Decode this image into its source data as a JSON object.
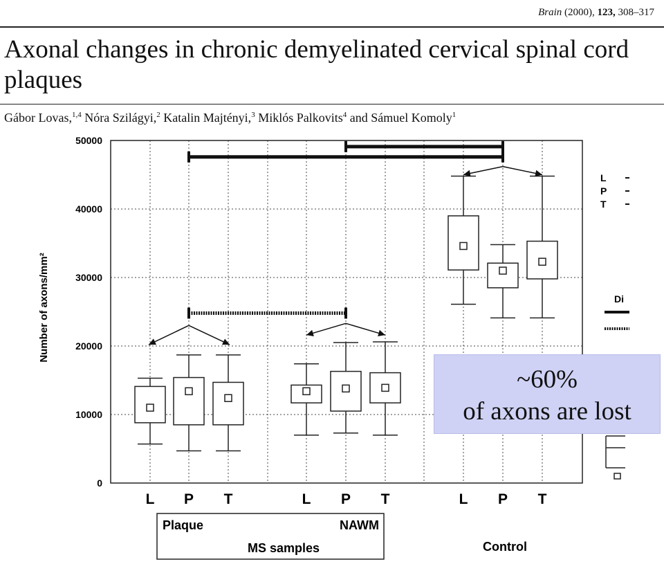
{
  "citation": {
    "journal": "Brain",
    "year": "(2000),",
    "volume": "123,",
    "pages": "308–317"
  },
  "title": "Axonal changes in chronic demyelinated cervical spinal cord plaques",
  "authors": [
    {
      "name": "Gábor Lovas,",
      "sup": "1,4"
    },
    {
      "name": "Nóra Szilágyi,",
      "sup": "2"
    },
    {
      "name": "Katalin Majtényi,",
      "sup": "3"
    },
    {
      "name": "Miklós Palkovits",
      "sup": "4"
    },
    {
      "name": "and Sámuel Komoly",
      "sup": "1"
    }
  ],
  "overlay": {
    "line1": "~60%",
    "line2": "of axons are lost"
  },
  "chart_data": {
    "type": "box",
    "ylabel": "Number of axons/mm²",
    "ylim": [
      0,
      50000
    ],
    "yticks": [
      0,
      10000,
      20000,
      30000,
      40000,
      50000
    ],
    "grid": true,
    "categories": [
      "L",
      "P",
      "T",
      "L",
      "P",
      "T",
      "L",
      "P",
      "T"
    ],
    "groups": [
      {
        "label": "Plaque",
        "indices": [
          0,
          1,
          2
        ]
      },
      {
        "label": "NAWM",
        "indices": [
          3,
          4,
          5
        ]
      },
      {
        "label": "Control",
        "indices": [
          6,
          7,
          8
        ]
      }
    ],
    "group_caption": "MS samples",
    "boxes": [
      {
        "min": 5700,
        "q1": 8800,
        "median": 11000,
        "q3": 14100,
        "max": 15300
      },
      {
        "min": 4700,
        "q1": 8500,
        "median": 13400,
        "q3": 15400,
        "max": 18700
      },
      {
        "min": 4700,
        "q1": 8500,
        "median": 12400,
        "q3": 14700,
        "max": 18700
      },
      {
        "min": 7000,
        "q1": 11700,
        "median": 13400,
        "q3": 14300,
        "max": 17400
      },
      {
        "min": 7300,
        "q1": 10500,
        "median": 13800,
        "q3": 16300,
        "max": 20500
      },
      {
        "min": 7000,
        "q1": 11700,
        "median": 13900,
        "q3": 16100,
        "max": 20600
      },
      {
        "min": 26100,
        "q1": 31100,
        "median": 34600,
        "q3": 39000,
        "max": 44800
      },
      {
        "min": 24100,
        "q1": 28500,
        "median": 31000,
        "q3": 32100,
        "max": 34800
      },
      {
        "min": 24100,
        "q1": 29800,
        "median": 32300,
        "q3": 35300,
        "max": 44800
      }
    ],
    "significance_bars": [
      {
        "from": 1,
        "to": 7,
        "y": 47600,
        "style": "solid"
      },
      {
        "from": 4,
        "to": 7,
        "y": 49100,
        "style": "solid"
      },
      {
        "from": 1,
        "to": 4,
        "y": 24800,
        "style": "hatched"
      }
    ],
    "partial_legend": [
      "L",
      "P",
      "T",
      "Di"
    ]
  }
}
